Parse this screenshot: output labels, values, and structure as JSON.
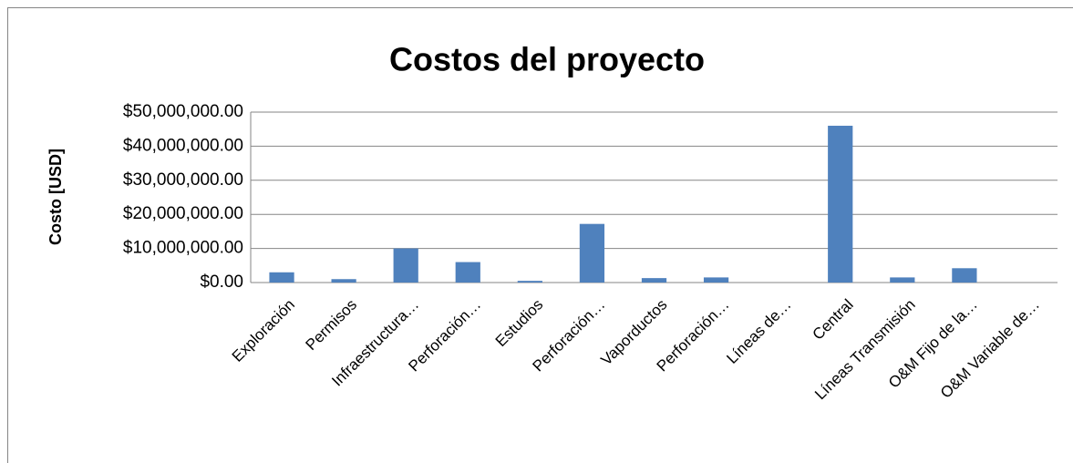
{
  "chart_data": {
    "type": "bar",
    "title": "Costos del proyecto",
    "y_label": "Costo [USD]",
    "categories": [
      "Exploración",
      "Permisos",
      "Infraestructura…",
      "Perforación…",
      "Estudios",
      "Perforación…",
      "Vaporductos",
      "Perforación…",
      "Líneas de…",
      "Central",
      "Líneas Transmisión",
      "O&M Fijo de la…",
      "O&M Variable de…"
    ],
    "values": [
      3000000,
      1000000,
      10000000,
      6000000,
      500000,
      17200000,
      1300000,
      1500000,
      0,
      46000000,
      1500000,
      4200000,
      0
    ],
    "color": "#4f81bd",
    "ylim": [
      0,
      50000000
    ],
    "yticks": [
      {
        "value": 0,
        "label": "$0.00"
      },
      {
        "value": 10000000,
        "label": "$10,000,000.00"
      },
      {
        "value": 20000000,
        "label": "$20,000,000.00"
      },
      {
        "value": 30000000,
        "label": "$30,000,000.00"
      },
      {
        "value": 40000000,
        "label": "$40,000,000.00"
      },
      {
        "value": 50000000,
        "label": "$50,000,000.00"
      }
    ],
    "grid": true
  }
}
